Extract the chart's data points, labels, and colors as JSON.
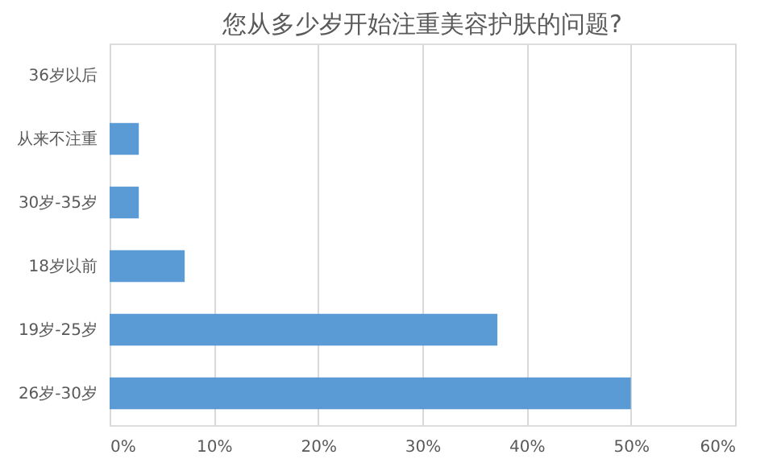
{
  "chart_data": {
    "type": "bar",
    "orientation": "horizontal",
    "title": "您从多少岁开始注重美容护肤的问题?",
    "categories": [
      "36岁以后",
      "从来不注重",
      "30岁-35岁",
      "18岁以前",
      "19岁-25岁",
      "26岁-30岁"
    ],
    "values": [
      0,
      2.8,
      2.8,
      7.2,
      37.2,
      50
    ],
    "color": "#5b9bd5",
    "xlim": [
      0,
      60
    ],
    "xticks": [
      {
        "value": 0,
        "label": "0%"
      },
      {
        "value": 10,
        "label": "10%"
      },
      {
        "value": 20,
        "label": "20%"
      },
      {
        "value": 30,
        "label": "30%"
      },
      {
        "value": 40,
        "label": "40%"
      },
      {
        "value": 50,
        "label": "50%"
      },
      {
        "value": 60,
        "label": "60%"
      }
    ],
    "grid": "x"
  }
}
